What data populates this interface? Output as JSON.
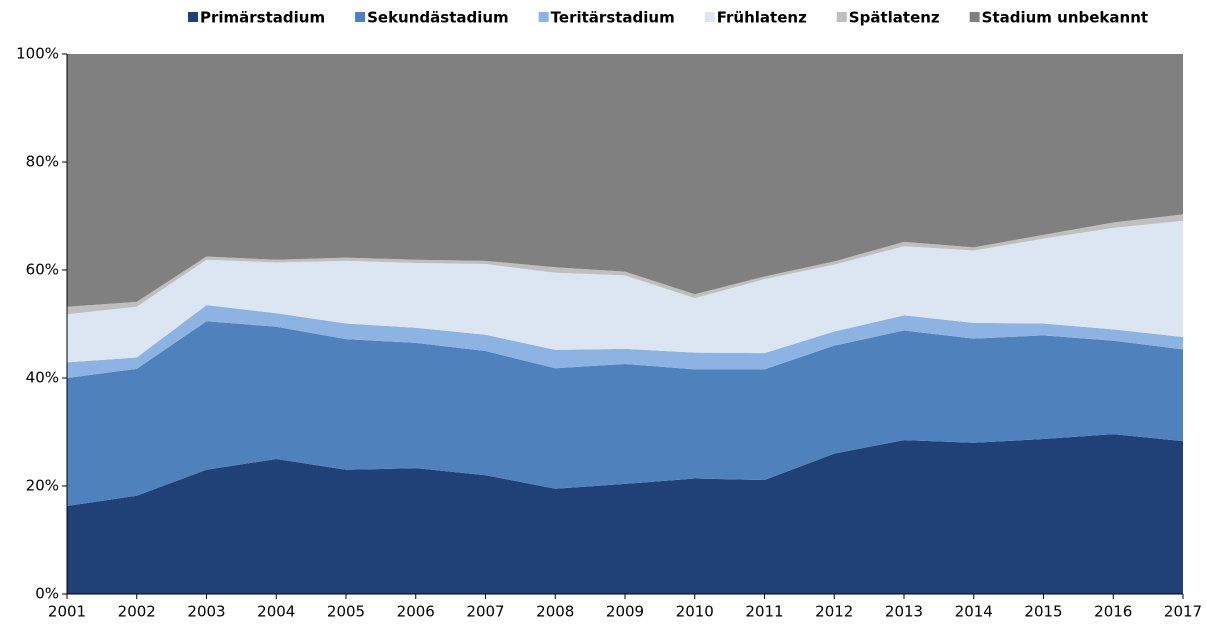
{
  "chart_data": {
    "type": "stacked-area",
    "categories": [
      "2001",
      "2002",
      "2003",
      "2004",
      "2005",
      "2006",
      "2007",
      "2008",
      "2009",
      "2010",
      "2011",
      "2012",
      "2013",
      "2014",
      "2015",
      "2016",
      "2017"
    ],
    "series": [
      {
        "name": "Primärstadium",
        "color": "#1f4178",
        "values": [
          16.3,
          18.2,
          23,
          25,
          23,
          23.3,
          22,
          19.5,
          20.4,
          21.4,
          21.1,
          26,
          28.5,
          28,
          28.7,
          29.6,
          28.3
        ]
      },
      {
        "name": "Sekundästadium",
        "color": "#4f81bd",
        "values": [
          23.7,
          23.5,
          27.5,
          24.5,
          24.2,
          23.2,
          23,
          22.3,
          22.2,
          20.2,
          20.5,
          20,
          20.3,
          19.3,
          19.2,
          17.3,
          17
        ]
      },
      {
        "name": "Teritärstadium",
        "color": "#8db3e2",
        "values": [
          2.9,
          2.1,
          3,
          2.5,
          2.9,
          2.8,
          3,
          3.4,
          2.8,
          3.1,
          3,
          2.6,
          2.8,
          2.9,
          2.2,
          2.1,
          2.3
        ]
      },
      {
        "name": "Frühlatenz",
        "color": "#dce6f2",
        "values": [
          8.9,
          9.4,
          8.4,
          9.4,
          11.6,
          12,
          13.1,
          14.3,
          13.6,
          10.1,
          13.7,
          12.4,
          12.8,
          13.4,
          15.7,
          18.8,
          21.5
        ]
      },
      {
        "name": "Spätlatenz",
        "color": "#bfbfbf",
        "values": [
          1.4,
          0.9,
          0.6,
          0.5,
          0.6,
          0.6,
          0.6,
          1,
          0.7,
          0.7,
          0.5,
          0.6,
          0.8,
          0.6,
          0.7,
          1,
          1.2
        ]
      },
      {
        "name": "Stadium unbekannt",
        "color": "#808080",
        "values": [
          46.8,
          45.9,
          37.5,
          38.1,
          37.7,
          38.1,
          38.3,
          39.5,
          40.3,
          44.5,
          41.2,
          38.4,
          34.8,
          35.8,
          33.5,
          31.2,
          29.7
        ]
      }
    ],
    "ylim": [
      0,
      100
    ],
    "yticks": [
      {
        "value": 0,
        "label": "0%"
      },
      {
        "value": 20,
        "label": "20%"
      },
      {
        "value": 40,
        "label": "40%"
      },
      {
        "value": 60,
        "label": "60%"
      },
      {
        "value": 80,
        "label": "80%"
      },
      {
        "value": 100,
        "label": "100%"
      }
    ],
    "legend": "top"
  }
}
